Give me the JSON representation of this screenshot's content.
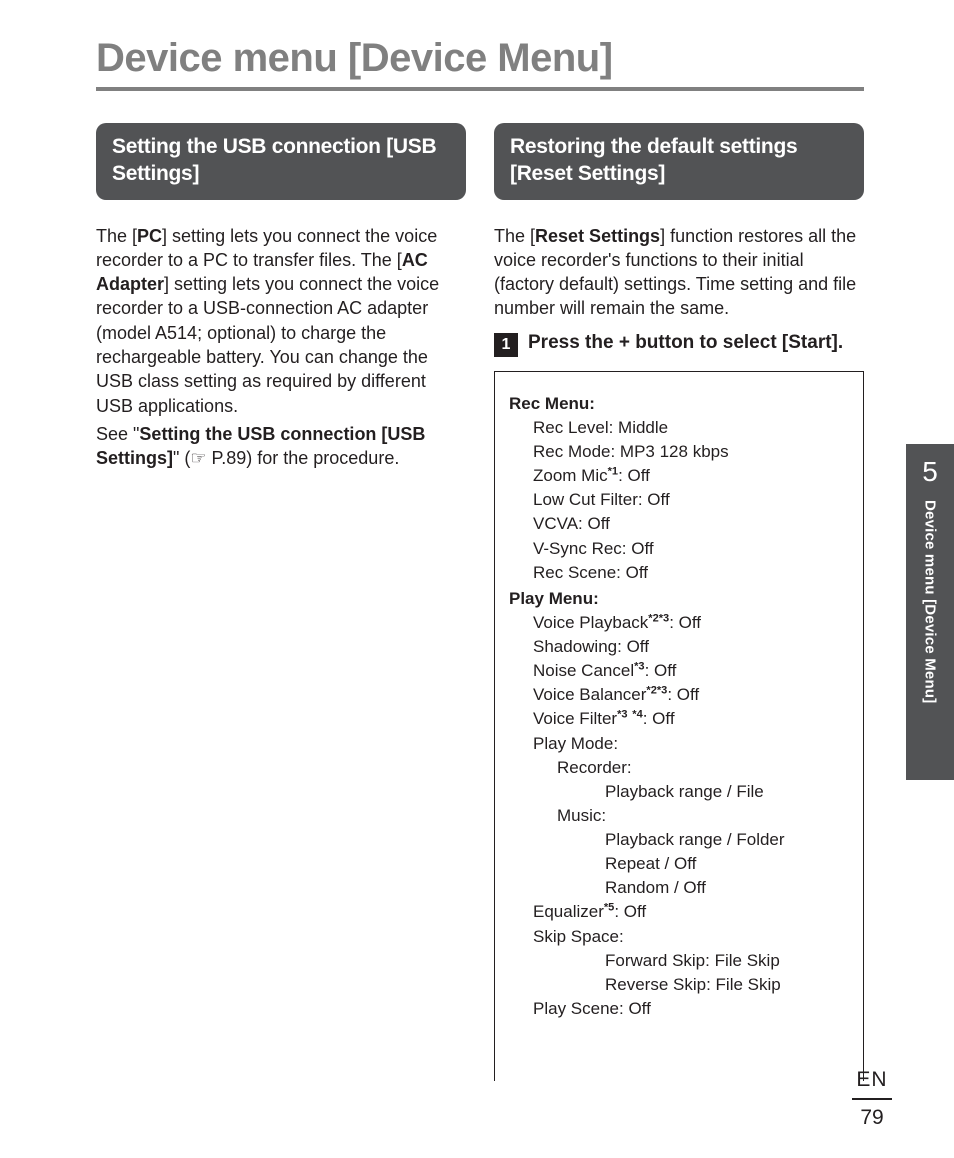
{
  "page": {
    "title": "Device menu [Device Menu]",
    "chapter_number": "5",
    "chapter_label": "Device menu [Device Menu]",
    "lang": "EN",
    "page_number": "79"
  },
  "left": {
    "header": "Setting the USB connection [USB Settings]",
    "p1a": "The [",
    "p1b": "PC",
    "p1c": "] setting lets you connect the voice recorder to a PC to transfer files. The [",
    "p1d": "AC Adapter",
    "p1e": "] setting lets you connect the voice recorder to a USB-connection AC adapter (model A514; optional) to charge the rechargeable battery. You can change the USB class setting as required by different USB applications.",
    "p2a": "See \"",
    "p2b": "Setting the USB connection [USB Settings]",
    "p2c": "\" (☞ P.89) for the procedure."
  },
  "right": {
    "header": "Restoring the default settings [Reset Settings]",
    "intro_a": "The [",
    "intro_b": "Reset Settings",
    "intro_c": "] function restores all the voice recorder's functions to their initial (factory default) settings. Time setting and file number will remain the same.",
    "step1_num": "1",
    "step1_a": "Press the + button to select [",
    "step1_b": "Start",
    "step1_c": "].",
    "box": {
      "rec_head": "Rec Menu:",
      "rec": [
        "Rec Level: Middle",
        "Rec Mode: MP3 128 kbps",
        "Zoom Mic*1: Off",
        "Low Cut Filter: Off",
        "VCVA: Off",
        "V-Sync Rec: Off",
        "Rec Scene: Off"
      ],
      "play_head": "Play Menu:",
      "play_a": [
        "Voice Playback*2*3: Off",
        "Shadowing: Off",
        "Noise Cancel*3: Off",
        "Voice Balancer*2*3: Off",
        "Voice Filter*3 *4: Off",
        "Play Mode:"
      ],
      "recorder_label": "Recorder:",
      "recorder_sub": "Playback range / File",
      "music_label": "Music:",
      "music_sub": [
        "Playback range / Folder",
        "Repeat / Off",
        "Random / Off"
      ],
      "eq": "Equalizer*5: Off",
      "skip_label": "Skip Space:",
      "skip_sub": [
        "Forward Skip: File Skip",
        "Reverse Skip: File Skip"
      ],
      "play_scene": "Play Scene: Off"
    }
  }
}
